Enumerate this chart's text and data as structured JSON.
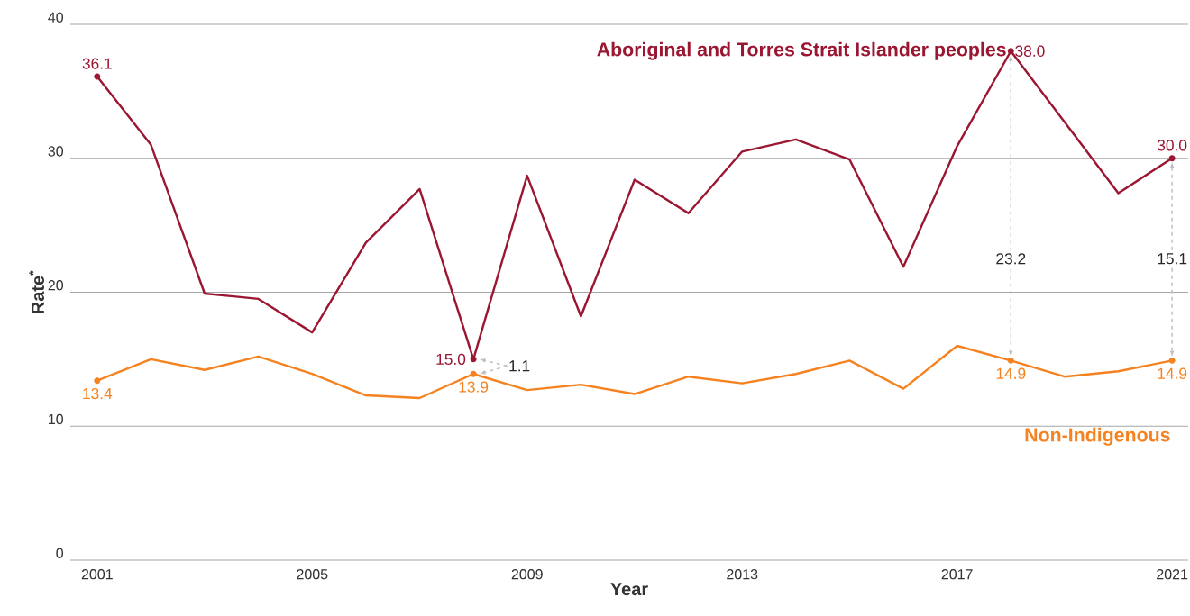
{
  "chart_data": {
    "type": "line",
    "xlabel": "Year",
    "ylabel": "Rate$^{*}$",
    "x": [
      2001,
      2002,
      2003,
      2004,
      2005,
      2006,
      2007,
      2008,
      2009,
      2010,
      2011,
      2012,
      2013,
      2014,
      2015,
      2016,
      2017,
      2018,
      2019,
      2020,
      2021
    ],
    "series": [
      {
        "name": "Aboriginal and Torres Strait Islander peoples",
        "color": "#9b1631",
        "values": [
          36.1,
          31.0,
          19.9,
          19.5,
          17.0,
          23.7,
          27.7,
          15.0,
          28.7,
          18.2,
          28.4,
          25.9,
          30.5,
          31.4,
          29.9,
          21.9,
          30.9,
          38.0,
          32.7,
          27.4,
          30.0
        ],
        "value_labels": [
          "36.1",
          null,
          null,
          null,
          null,
          null,
          null,
          "15.0",
          null,
          null,
          null,
          null,
          null,
          null,
          null,
          null,
          null,
          "38.0",
          null,
          null,
          "30.0"
        ]
      },
      {
        "name": "Non-Indigenous",
        "color": "#f5821f",
        "values": [
          13.4,
          15.0,
          14.2,
          15.2,
          13.9,
          12.3,
          12.1,
          13.9,
          12.7,
          13.1,
          12.4,
          13.7,
          13.2,
          13.9,
          14.9,
          12.8,
          16.0,
          14.9,
          13.7,
          14.1,
          14.9
        ],
        "value_labels": [
          "13.4",
          null,
          null,
          null,
          null,
          null,
          null,
          "13.9",
          null,
          null,
          null,
          null,
          null,
          null,
          null,
          null,
          null,
          "14.9",
          null,
          null,
          "14.9"
        ]
      }
    ],
    "annotations": [
      {
        "text": "1.1",
        "x": 2008,
        "y": 14.5
      },
      {
        "text": "23.2",
        "x": 2018,
        "y": 22.5
      },
      {
        "text": "15.1",
        "x": 2021,
        "y": 22.5
      }
    ],
    "xlim": [
      2000.5,
      2021.3
    ],
    "ylim": [
      0,
      40
    ],
    "xticks": [
      2001,
      2005,
      2009,
      2013,
      2017,
      2021
    ],
    "yticks": [
      0,
      10,
      20,
      30,
      40
    ],
    "grid": "y",
    "line_style": "solid"
  }
}
